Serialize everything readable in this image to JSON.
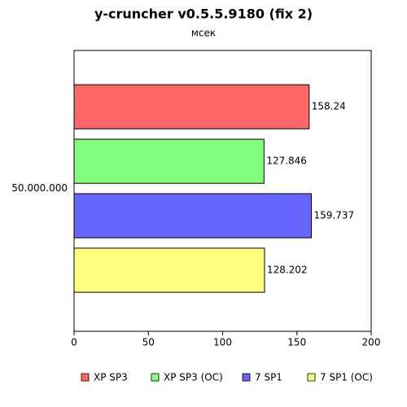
{
  "chart_data": {
    "type": "bar",
    "orientation": "horizontal",
    "title": "y-cruncher v0.5.5.9180 (fix 2)",
    "subtitle": "мсек",
    "categories": [
      "50.000.000"
    ],
    "series": [
      {
        "name": "XP SP3",
        "color": "#ff6666",
        "values": [
          158.24
        ]
      },
      {
        "name": "XP SP3 (OC)",
        "color": "#80ff80",
        "values": [
          127.846
        ]
      },
      {
        "name": "7 SP1",
        "color": "#6666ff",
        "values": [
          159.737
        ]
      },
      {
        "name": "7 SP1 (OC)",
        "color": "#ffff80",
        "values": [
          128.202
        ]
      }
    ],
    "xlim": [
      0,
      200
    ],
    "xticks": [
      0,
      50,
      100,
      150,
      200
    ],
    "grid": false,
    "legend": "bottom"
  }
}
